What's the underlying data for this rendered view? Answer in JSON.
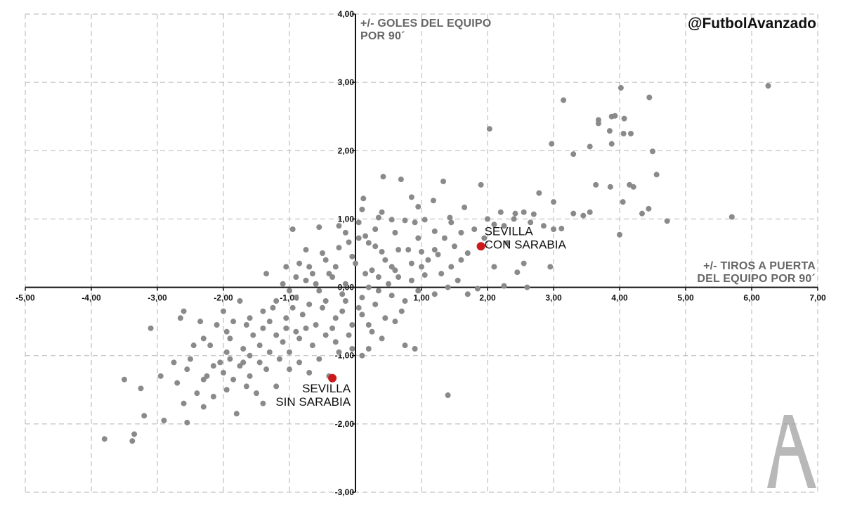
{
  "chart_data": {
    "type": "scatter",
    "xlim": [
      -5,
      7
    ],
    "ylim": [
      -3,
      4
    ],
    "grid": true,
    "x_tick_labels": [
      "-5,00",
      "-4,00",
      "-3,00",
      "-2,00",
      "-1,00",
      "0,00",
      "1,00",
      "2,00",
      "3,00",
      "4,00",
      "5,00",
      "6,00",
      "7,00"
    ],
    "y_tick_labels": [
      "-3,00",
      "-2,00",
      "-1,00",
      "1,00",
      "2,00",
      "3,00",
      "4,00"
    ],
    "origin_label": "0,00",
    "ylabel_lines": [
      "+/-  GOLES DEL EQUIPO",
      "POR 90´"
    ],
    "xlabel_lines": [
      "+/-  TIROS A PUERTA",
      "DEL EQUIPO POR 90´"
    ],
    "handle": "@FutbolAvanzado",
    "colors": {
      "points": "#8a8a8a",
      "highlight": "#cc1a1a",
      "grid": "#b5b5b5",
      "axis": "#111111"
    },
    "highlighted": [
      {
        "x": 1.9,
        "y": 0.6,
        "label_lines": [
          "SEVILLA",
          "CON SARABIA"
        ]
      },
      {
        "x": -0.35,
        "y": -1.33,
        "label_lines": [
          "SEVILLA",
          "SIN SARABIA"
        ]
      }
    ],
    "points": [
      [
        6.25,
        2.95
      ],
      [
        4.45,
        2.78
      ],
      [
        4.02,
        2.92
      ],
      [
        3.15,
        2.74
      ],
      [
        3.88,
        2.5
      ],
      [
        3.93,
        2.51
      ],
      [
        4.07,
        2.47
      ],
      [
        3.68,
        2.45
      ],
      [
        3.68,
        2.4
      ],
      [
        3.85,
        2.29
      ],
      [
        4.06,
        2.25
      ],
      [
        4.17,
        2.25
      ],
      [
        3.88,
        2.1
      ],
      [
        2.03,
        2.32
      ],
      [
        2.97,
        2.1
      ],
      [
        3.3,
        1.95
      ],
      [
        3.55,
        2.06
      ],
      [
        4.5,
        1.99
      ],
      [
        4.56,
        1.65
      ],
      [
        4.15,
        1.5
      ],
      [
        4.21,
        1.47
      ],
      [
        3.64,
        1.5
      ],
      [
        3.86,
        1.47
      ],
      [
        4.05,
        1.25
      ],
      [
        4.44,
        1.15
      ],
      [
        4.34,
        1.08
      ],
      [
        4.72,
        0.97
      ],
      [
        5.7,
        1.03
      ],
      [
        4.0,
        0.77
      ],
      [
        2.78,
        1.38
      ],
      [
        3.0,
        1.25
      ],
      [
        3.3,
        1.08
      ],
      [
        3.12,
        0.86
      ],
      [
        3.0,
        0.85
      ],
      [
        2.7,
        1.07
      ],
      [
        2.55,
        1.1
      ],
      [
        2.42,
        1.08
      ],
      [
        2.2,
        1.1
      ],
      [
        2.0,
        1.0
      ],
      [
        2.1,
        0.92
      ],
      [
        1.9,
        1.5
      ],
      [
        1.95,
        0.72
      ],
      [
        1.65,
        1.17
      ],
      [
        1.43,
        1.02
      ],
      [
        1.33,
        1.55
      ],
      [
        1.18,
        1.27
      ],
      [
        0.95,
        1.18
      ],
      [
        0.85,
        1.32
      ],
      [
        0.42,
        1.62
      ],
      [
        0.69,
        1.58
      ],
      [
        0.12,
        1.3
      ],
      [
        0.1,
        1.14
      ],
      [
        0.35,
        1.02
      ],
      [
        0.55,
        0.99
      ],
      [
        0.75,
        0.98
      ],
      [
        0.9,
        0.95
      ],
      [
        1.05,
        0.99
      ],
      [
        1.2,
        0.82
      ],
      [
        1.35,
        0.72
      ],
      [
        1.5,
        0.6
      ],
      [
        1.25,
        0.48
      ],
      [
        1.0,
        0.52
      ],
      [
        0.65,
        0.55
      ],
      [
        0.4,
        0.52
      ],
      [
        0.2,
        0.65
      ],
      [
        0.05,
        0.72
      ],
      [
        -0.1,
        0.66
      ],
      [
        -0.25,
        0.58
      ],
      [
        -0.5,
        0.5
      ],
      [
        -0.75,
        0.55
      ],
      [
        -0.55,
        0.88
      ],
      [
        -0.95,
        0.85
      ],
      [
        -0.7,
        0.3
      ],
      [
        -0.9,
        0.15
      ],
      [
        -1.1,
        0.05
      ],
      [
        -1.35,
        0.2
      ],
      [
        -0.3,
        0.3
      ],
      [
        0.0,
        0.35
      ],
      [
        0.15,
        0.2
      ],
      [
        0.35,
        0.15
      ],
      [
        0.6,
        0.25
      ],
      [
        0.85,
        0.1
      ],
      [
        1.05,
        0.18
      ],
      [
        1.45,
        0.3
      ],
      [
        1.7,
        0.5
      ],
      [
        2.3,
        0.65
      ],
      [
        2.55,
        0.35
      ],
      [
        2.95,
        0.3
      ],
      [
        2.45,
        0.22
      ],
      [
        2.6,
        0.0
      ],
      [
        2.25,
        0.02
      ],
      [
        1.85,
        -0.02
      ],
      [
        1.4,
        0.0
      ],
      [
        1.2,
        -0.1
      ],
      [
        0.95,
        -0.05
      ],
      [
        0.75,
        -0.2
      ],
      [
        0.55,
        -0.12
      ],
      [
        0.3,
        -0.25
      ],
      [
        0.05,
        -0.3
      ],
      [
        -0.2,
        -0.1
      ],
      [
        -0.45,
        -0.2
      ],
      [
        -0.7,
        -0.25
      ],
      [
        -0.95,
        -0.3
      ],
      [
        -1.2,
        -0.2
      ],
      [
        -1.4,
        -0.35
      ],
      [
        -1.6,
        -0.45
      ],
      [
        -1.85,
        -0.5
      ],
      [
        -2.1,
        -0.55
      ],
      [
        -2.35,
        -0.5
      ],
      [
        -2.6,
        -0.35
      ],
      [
        -2.2,
        -0.85
      ],
      [
        -1.95,
        -0.95
      ],
      [
        -1.7,
        -0.9
      ],
      [
        -1.45,
        -0.85
      ],
      [
        -1.2,
        -0.7
      ],
      [
        -0.9,
        -0.65
      ],
      [
        -0.6,
        -0.55
      ],
      [
        -0.35,
        -0.6
      ],
      [
        -0.1,
        -0.7
      ],
      [
        0.25,
        -0.65
      ],
      [
        0.75,
        -0.85
      ],
      [
        0.9,
        -0.9
      ],
      [
        0.1,
        -1.0
      ],
      [
        -0.25,
        -0.95
      ],
      [
        -0.55,
        -1.05
      ],
      [
        -0.85,
        -1.1
      ],
      [
        -1.15,
        -1.05
      ],
      [
        -1.45,
        -1.1
      ],
      [
        -1.75,
        -1.15
      ],
      [
        -2.0,
        -1.25
      ],
      [
        -2.25,
        -1.3
      ],
      [
        -2.55,
        -1.2
      ],
      [
        -2.75,
        -1.1
      ],
      [
        -2.95,
        -1.3
      ],
      [
        -2.4,
        -1.55
      ],
      [
        -2.15,
        -1.6
      ],
      [
        -1.95,
        -1.5
      ],
      [
        -1.65,
        -1.45
      ],
      [
        -1.4,
        -1.7
      ],
      [
        -1.8,
        -1.85
      ],
      [
        -2.3,
        -1.75
      ],
      [
        -2.6,
        -1.7
      ],
      [
        -2.9,
        -1.95
      ],
      [
        -2.55,
        -1.98
      ],
      [
        -3.2,
        -1.88
      ],
      [
        -3.35,
        -2.15
      ],
      [
        -3.38,
        -2.25
      ],
      [
        -3.25,
        -1.48
      ],
      [
        -3.5,
        -1.35
      ],
      [
        -3.8,
        -2.22
      ],
      [
        -3.1,
        -0.6
      ],
      [
        -2.65,
        -0.45
      ],
      [
        -2.3,
        -0.75
      ],
      [
        -1.65,
        -0.55
      ],
      [
        -1.3,
        -0.5
      ],
      [
        -1.05,
        -0.45
      ],
      [
        -0.8,
        -0.4
      ],
      [
        -0.5,
        -0.3
      ],
      [
        -0.2,
        -0.35
      ],
      [
        0.1,
        -0.4
      ],
      [
        0.45,
        -0.45
      ],
      [
        1.4,
        -1.58
      ],
      [
        0.6,
        -0.5
      ],
      [
        0.2,
        -0.9
      ],
      [
        -0.4,
        -1.3
      ],
      [
        -0.7,
        -1.25
      ],
      [
        -1.0,
        -1.2
      ],
      [
        -1.6,
        -1.3
      ],
      [
        -1.2,
        -1.45
      ],
      [
        -0.9,
        -0.15
      ],
      [
        -0.6,
        0.05
      ],
      [
        -0.35,
        0.15
      ],
      [
        -0.15,
        0.05
      ],
      [
        0.2,
        0.0
      ],
      [
        0.5,
        0.05
      ],
      [
        0.7,
        -0.35
      ],
      [
        0.4,
        -0.75
      ],
      [
        -0.05,
        -0.55
      ],
      [
        -0.3,
        -0.8
      ],
      [
        -0.65,
        -0.85
      ],
      [
        -1.0,
        -0.95
      ],
      [
        -1.3,
        -0.95
      ],
      [
        -1.55,
        -0.7
      ],
      [
        -1.9,
        -0.75
      ],
      [
        -2.05,
        -1.1
      ],
      [
        -1.85,
        -1.35
      ],
      [
        -1.5,
        -1.55
      ],
      [
        -1.35,
        -1.2
      ],
      [
        -0.85,
        -0.75
      ],
      [
        0.6,
        0.8
      ],
      [
        0.3,
        0.85
      ],
      [
        0.95,
        0.72
      ],
      [
        1.2,
        0.55
      ],
      [
        1.6,
        0.4
      ],
      [
        2.1,
        0.3
      ],
      [
        0.45,
        0.4
      ],
      [
        -0.05,
        0.45
      ],
      [
        -0.4,
        0.2
      ],
      [
        -0.85,
        0.35
      ],
      [
        -1.05,
        0.3
      ],
      [
        -0.55,
        -0.05
      ],
      [
        -0.15,
        -0.2
      ],
      [
        0.1,
        -0.15
      ],
      [
        0.35,
        -0.05
      ],
      [
        0.65,
        0.15
      ],
      [
        0.85,
        0.35
      ],
      [
        1.1,
        0.4
      ],
      [
        1.3,
        0.2
      ],
      [
        1.55,
        0.1
      ],
      [
        1.7,
        -0.1
      ],
      [
        -1.75,
        -0.2
      ],
      [
        -2.0,
        -0.35
      ],
      [
        -2.45,
        -0.85
      ],
      [
        -2.7,
        -1.4
      ],
      [
        -2.5,
        -1.05
      ],
      [
        -2.15,
        -1.15
      ],
      [
        -1.7,
        -1.1
      ],
      [
        -0.25,
        0.9
      ],
      [
        0.05,
        0.95
      ],
      [
        0.3,
        0.6
      ],
      [
        0.55,
        0.3
      ],
      [
        0.8,
        0.55
      ],
      [
        1.0,
        0.3
      ],
      [
        -0.45,
        0.4
      ],
      [
        -0.75,
        0.1
      ],
      [
        -1.0,
        -0.05
      ],
      [
        -1.25,
        -0.3
      ],
      [
        -0.3,
        -0.45
      ],
      [
        -0.05,
        -0.9
      ],
      [
        0.2,
        -0.55
      ],
      [
        -0.75,
        -0.6
      ],
      [
        -1.05,
        -0.6
      ],
      [
        -1.4,
        -0.6
      ],
      [
        -1.9,
        -1.05
      ],
      [
        2.4,
        1.0
      ],
      [
        2.65,
        0.95
      ],
      [
        2.85,
        0.9
      ],
      [
        3.45,
        1.05
      ],
      [
        3.55,
        1.1
      ],
      [
        2.25,
        0.9
      ],
      [
        1.8,
        0.85
      ],
      [
        1.6,
        0.8
      ],
      [
        1.45,
        0.95
      ],
      [
        0.15,
        0.75
      ],
      [
        -0.15,
        0.8
      ],
      [
        0.4,
        1.1
      ],
      [
        0.25,
        0.25
      ],
      [
        -0.65,
        0.2
      ],
      [
        -0.45,
        -0.7
      ],
      [
        -1.1,
        -0.8
      ],
      [
        -1.6,
        -1.0
      ],
      [
        -1.95,
        -0.65
      ],
      [
        -2.3,
        -1.35
      ]
    ]
  }
}
